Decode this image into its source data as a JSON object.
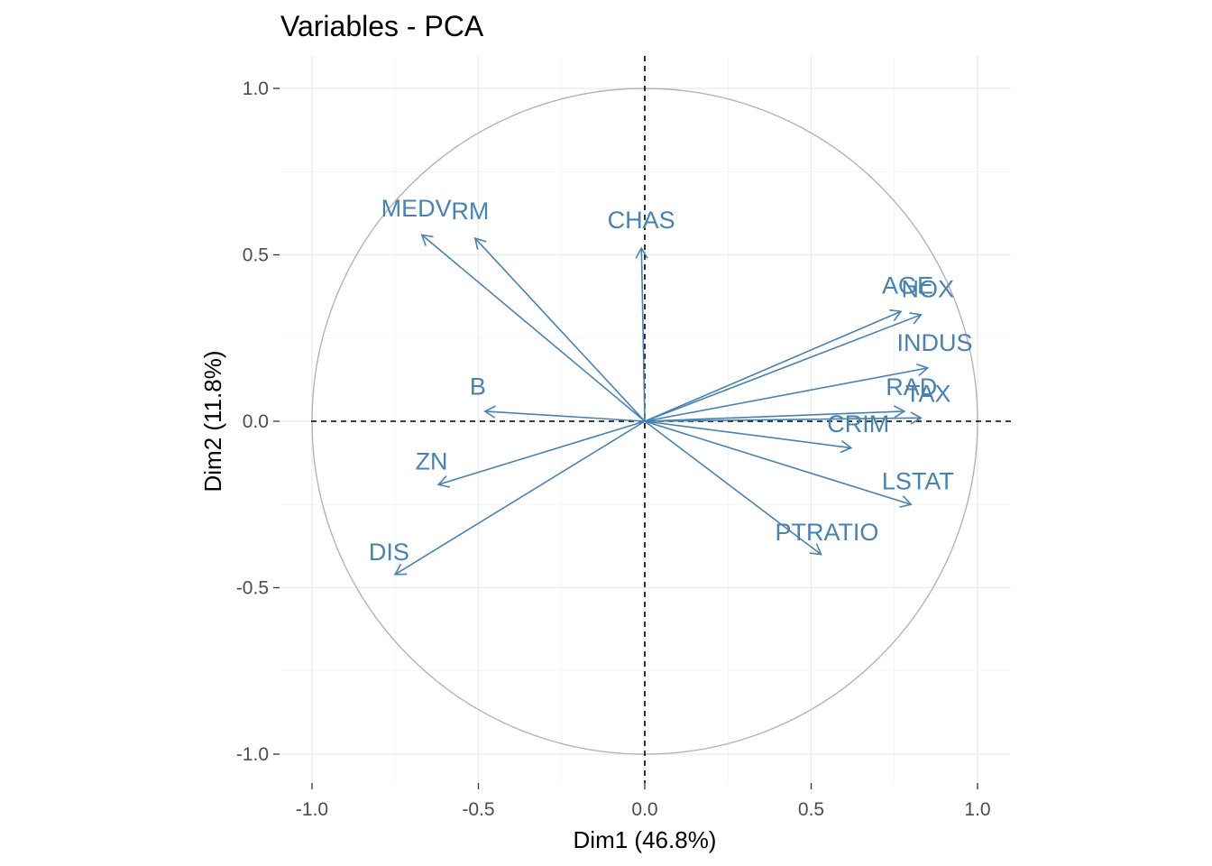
{
  "chart_data": {
    "type": "scatter",
    "title": "Variables - PCA",
    "xlabel": "Dim1 (46.8%)",
    "ylabel": "Dim2 (11.8%)",
    "xlim": [
      -1.1,
      1.1
    ],
    "ylim": [
      -1.1,
      1.05
    ],
    "xticks": [
      -1.0,
      -0.5,
      0.0,
      0.5,
      1.0
    ],
    "xtick_labels": [
      "-1.0",
      "-0.5",
      "0.0",
      "0.5",
      "1.0"
    ],
    "yticks": [
      -1.0,
      -0.5,
      0.0,
      0.5,
      1.0
    ],
    "ytick_labels": [
      "-1.0",
      "-0.5",
      "0.0",
      "0.5",
      "1.0"
    ],
    "grid": true,
    "unit_circle": true,
    "arrow_color": "#4682B4",
    "variables": [
      {
        "name": "CRIM",
        "x": 0.62,
        "y": -0.08
      },
      {
        "name": "ZN",
        "x": -0.62,
        "y": -0.19
      },
      {
        "name": "INDUS",
        "x": 0.85,
        "y": 0.16
      },
      {
        "name": "CHAS",
        "x": -0.01,
        "y": 0.52
      },
      {
        "name": "NOX",
        "x": 0.83,
        "y": 0.32
      },
      {
        "name": "RM",
        "x": -0.51,
        "y": 0.55
      },
      {
        "name": "AGE",
        "x": 0.77,
        "y": 0.33
      },
      {
        "name": "DIS",
        "x": -0.75,
        "y": -0.46
      },
      {
        "name": "RAD",
        "x": 0.78,
        "y": 0.03
      },
      {
        "name": "TAX",
        "x": 0.83,
        "y": 0.01
      },
      {
        "name": "PTRATIO",
        "x": 0.53,
        "y": -0.4
      },
      {
        "name": "B",
        "x": -0.48,
        "y": 0.03
      },
      {
        "name": "LSTAT",
        "x": 0.8,
        "y": -0.25
      },
      {
        "name": "MEDV",
        "x": -0.67,
        "y": 0.56
      }
    ]
  }
}
